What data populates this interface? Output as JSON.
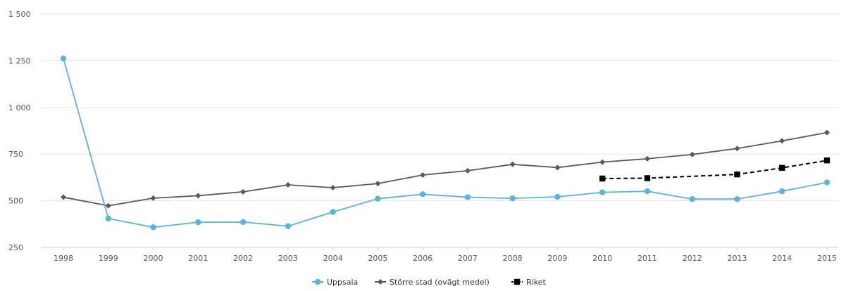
{
  "chart_data": {
    "type": "line",
    "x": [
      "1998",
      "1999",
      "2000",
      "2001",
      "2002",
      "2003",
      "2004",
      "2005",
      "2006",
      "2007",
      "2008",
      "2009",
      "2010",
      "2011",
      "2012",
      "2013",
      "2014",
      "2015"
    ],
    "y_ticks": [
      "250",
      "500",
      "750",
      "1 000",
      "1 250",
      "1 500"
    ],
    "ylim": [
      250,
      1500
    ],
    "grid": "horizontal",
    "legend_position": "bottom",
    "series": [
      {
        "name": "Uppsala",
        "color": "#5ab4dd",
        "marker": "circle",
        "dash": "solid",
        "values": [
          1262,
          405,
          358,
          385,
          386,
          364,
          440,
          511,
          535,
          519,
          513,
          521,
          545,
          551,
          509,
          509,
          551,
          598
        ]
      },
      {
        "name": "Större stad (ovägt medel)",
        "color": "#595959",
        "marker": "diamond",
        "dash": "solid",
        "values": [
          519,
          473,
          514,
          527,
          548,
          585,
          570,
          592,
          638,
          661,
          695,
          678,
          707,
          725,
          748,
          780,
          821,
          865
        ]
      },
      {
        "name": "Riket",
        "color": "#000000",
        "marker": "square",
        "dash": "dashed",
        "values": [
          null,
          null,
          null,
          null,
          null,
          null,
          null,
          null,
          null,
          null,
          null,
          null,
          619,
          621,
          null,
          641,
          676,
          716
        ]
      }
    ]
  }
}
